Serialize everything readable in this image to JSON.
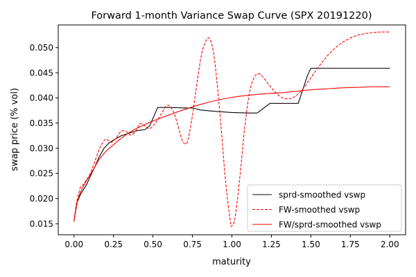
{
  "chart_data": {
    "type": "line",
    "title": "Forward 1-month Variance Swap Curve (SPX 20191220)",
    "xlabel": "maturity",
    "ylabel": "swap price (% vol)",
    "xlim": [
      -0.1,
      2.1
    ],
    "ylim": [
      0.0128,
      0.0545
    ],
    "x_ticks": [
      0.0,
      0.25,
      0.5,
      0.75,
      1.0,
      1.25,
      1.5,
      1.75,
      2.0
    ],
    "x_tick_labels": [
      "0.00",
      "0.25",
      "0.50",
      "0.75",
      "1.00",
      "1.25",
      "1.50",
      "1.75",
      "2.00"
    ],
    "y_ticks": [
      0.015,
      0.02,
      0.025,
      0.03,
      0.035,
      0.04,
      0.045,
      0.05
    ],
    "y_tick_labels": [
      "0.015",
      "0.020",
      "0.025",
      "0.030",
      "0.035",
      "0.040",
      "0.045",
      "0.050"
    ],
    "grid": false,
    "legend_position": "lower-right",
    "series": [
      {
        "name": "sprd-smoothed vswp",
        "color": "#000000",
        "dash": "solid",
        "x": [
          0.0,
          0.01,
          0.02,
          0.04,
          0.06,
          0.08,
          0.1,
          0.13,
          0.16,
          0.19,
          0.22,
          0.25,
          0.3,
          0.35,
          0.4,
          0.45,
          0.48,
          0.53,
          0.6,
          0.7,
          0.75,
          0.8,
          0.9,
          1.0,
          1.1,
          1.16,
          1.24,
          1.3,
          1.4,
          1.42,
          1.48,
          1.5,
          1.6,
          1.8,
          2.0
        ],
        "y": [
          0.0155,
          0.0175,
          0.0192,
          0.0208,
          0.0218,
          0.0228,
          0.0242,
          0.0262,
          0.0283,
          0.03,
          0.031,
          0.0316,
          0.0325,
          0.033,
          0.0335,
          0.0337,
          0.0345,
          0.0381,
          0.0381,
          0.038,
          0.038,
          0.0376,
          0.0373,
          0.0371,
          0.037,
          0.037,
          0.0389,
          0.0389,
          0.0389,
          0.0389,
          0.0446,
          0.0459,
          0.0459,
          0.0459,
          0.0459
        ]
      },
      {
        "name": "FW-smoothed vswp",
        "color": "#ff0000",
        "dash": "dashed",
        "x": [
          0.0,
          0.01,
          0.02,
          0.04,
          0.06,
          0.08,
          0.1,
          0.13,
          0.16,
          0.18,
          0.2,
          0.22,
          0.24,
          0.27,
          0.3,
          0.33,
          0.36,
          0.39,
          0.42,
          0.45,
          0.48,
          0.52,
          0.56,
          0.58,
          0.6,
          0.63,
          0.66,
          0.68,
          0.7,
          0.72,
          0.75,
          0.78,
          0.81,
          0.84,
          0.86,
          0.88,
          0.9,
          0.93,
          0.96,
          0.99,
          1.0,
          1.02,
          1.05,
          1.08,
          1.11,
          1.14,
          1.17,
          1.2,
          1.25,
          1.3,
          1.35,
          1.4,
          1.45,
          1.5,
          1.55,
          1.6,
          1.65,
          1.7,
          1.75,
          1.8,
          1.85,
          1.9,
          1.95,
          2.0
        ],
        "y": [
          0.0154,
          0.018,
          0.0198,
          0.0222,
          0.0228,
          0.0238,
          0.0248,
          0.0272,
          0.0298,
          0.031,
          0.0318,
          0.0315,
          0.0312,
          0.0322,
          0.0334,
          0.0333,
          0.0326,
          0.0334,
          0.0349,
          0.0344,
          0.0339,
          0.0352,
          0.0372,
          0.0382,
          0.0385,
          0.0372,
          0.0343,
          0.032,
          0.0309,
          0.0315,
          0.0365,
          0.0433,
          0.049,
          0.0516,
          0.0517,
          0.0496,
          0.0448,
          0.0348,
          0.0233,
          0.0155,
          0.0146,
          0.0162,
          0.0242,
          0.0338,
          0.0408,
          0.044,
          0.0448,
          0.044,
          0.042,
          0.0404,
          0.0398,
          0.0403,
          0.0418,
          0.044,
          0.0462,
          0.0482,
          0.0498,
          0.051,
          0.0519,
          0.0525,
          0.0528,
          0.053,
          0.0531,
          0.0531
        ]
      },
      {
        "name": "FW/sprd-smoothed vswp",
        "color": "#ff0000",
        "dash": "solid",
        "x": [
          0.0,
          0.01,
          0.02,
          0.04,
          0.06,
          0.08,
          0.1,
          0.13,
          0.16,
          0.2,
          0.25,
          0.3,
          0.35,
          0.4,
          0.5,
          0.6,
          0.7,
          0.8,
          0.9,
          1.0,
          1.1,
          1.2,
          1.3,
          1.4,
          1.5,
          1.6,
          1.7,
          1.8,
          1.9,
          2.0
        ],
        "y": [
          0.0154,
          0.0175,
          0.0192,
          0.0212,
          0.0225,
          0.0236,
          0.0246,
          0.0262,
          0.0278,
          0.0293,
          0.0307,
          0.032,
          0.0331,
          0.034,
          0.0354,
          0.0366,
          0.0377,
          0.0387,
          0.0395,
          0.0401,
          0.0405,
          0.0408,
          0.041,
          0.0413,
          0.0416,
          0.0418,
          0.042,
          0.0421,
          0.0422,
          0.0422
        ]
      }
    ]
  }
}
